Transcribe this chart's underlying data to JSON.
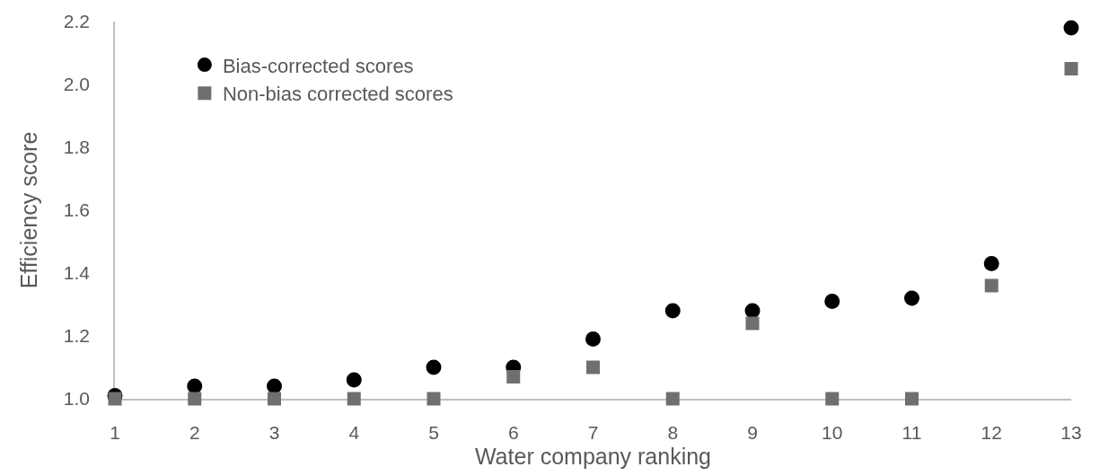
{
  "chart_data": {
    "type": "scatter",
    "xlabel": "Water company ranking",
    "ylabel": "Efficiency score",
    "x": [
      1,
      2,
      3,
      4,
      5,
      6,
      7,
      8,
      9,
      10,
      11,
      12,
      13
    ],
    "series": [
      {
        "name": "Bias-corrected scores",
        "color": "#000000",
        "marker": "circle",
        "values": [
          1.01,
          1.04,
          1.04,
          1.06,
          1.1,
          1.1,
          1.19,
          1.28,
          1.28,
          1.31,
          1.32,
          1.43,
          2.18
        ]
      },
      {
        "name": "Non-bias corrected scores",
        "color": "#6f6f6f",
        "marker": "square",
        "values": [
          1.0,
          1.0,
          1.0,
          1.0,
          1.0,
          1.07,
          1.1,
          1.0,
          1.24,
          1.0,
          1.0,
          1.36,
          2.05
        ]
      }
    ],
    "xlim": [
      1,
      13
    ],
    "xticks": [
      1,
      2,
      3,
      4,
      5,
      6,
      7,
      8,
      9,
      10,
      11,
      12,
      13
    ],
    "ylim": [
      1.0,
      2.2
    ],
    "yticks": [
      {
        "value": 1.0,
        "label": "1.0"
      },
      1.2,
      1.4,
      1.6,
      1.8,
      {
        "value": 2.0,
        "label": "2.0"
      },
      2.2
    ],
    "legend": "top left"
  }
}
